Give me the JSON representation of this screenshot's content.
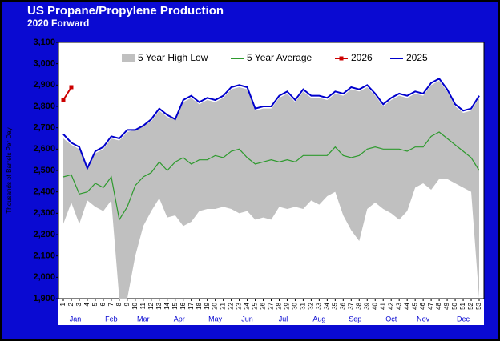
{
  "chart_data": {
    "type": "line",
    "title": "US Propane/Propylene Production",
    "subtitle": "2020 Forward",
    "y_label": "Thousands of Barrels Per Day",
    "categories": [
      "1",
      "2",
      "3",
      "4",
      "5",
      "6",
      "7",
      "8",
      "9",
      "10",
      "11",
      "12",
      "13",
      "14",
      "15",
      "16",
      "17",
      "18",
      "19",
      "20",
      "21",
      "22",
      "23",
      "24",
      "25",
      "26",
      "27",
      "28",
      "29",
      "30",
      "31",
      "32",
      "33",
      "34",
      "35",
      "36",
      "37",
      "38",
      "39",
      "40",
      "41",
      "42",
      "43",
      "44",
      "45",
      "46",
      "47",
      "48",
      "49",
      "50",
      "51",
      "52",
      "53"
    ],
    "months": [
      "Jan",
      "Feb",
      "Mar",
      "Apr",
      "May",
      "Jun",
      "Jul",
      "Aug",
      "Sep",
      "Oct",
      "Nov",
      "Dec"
    ],
    "ylim": [
      1900,
      3100
    ],
    "yticks": [
      {
        "value": 1900,
        "label": "1,900"
      },
      {
        "value": 2000,
        "label": "2,000"
      },
      {
        "value": 2100,
        "label": "2,100"
      },
      {
        "value": 2200,
        "label": "2,200"
      },
      {
        "value": 2300,
        "label": "2,300"
      },
      {
        "value": 2400,
        "label": "2,400"
      },
      {
        "value": 2500,
        "label": "2,500"
      },
      {
        "value": 2600,
        "label": "2,600"
      },
      {
        "value": 2700,
        "label": "2,700"
      },
      {
        "value": 2800,
        "label": "2,800"
      },
      {
        "value": 2900,
        "label": "2,900"
      },
      {
        "value": 3000,
        "label": "3,000"
      },
      {
        "value": 3100,
        "label": "3,100"
      }
    ],
    "grid": false,
    "legend": "top",
    "band": {
      "name": "5 Year High Low",
      "color": "#c0c0c0",
      "high": [
        2650,
        2620,
        2600,
        2510,
        2580,
        2600,
        2650,
        2640,
        2680,
        2690,
        2710,
        2730,
        2780,
        2750,
        2740,
        2820,
        2840,
        2810,
        2830,
        2820,
        2840,
        2880,
        2890,
        2880,
        2780,
        2790,
        2790,
        2840,
        2860,
        2820,
        2870,
        2840,
        2840,
        2830,
        2860,
        2850,
        2880,
        2870,
        2890,
        2850,
        2800,
        2830,
        2850,
        2840,
        2860,
        2850,
        2900,
        2920,
        2870,
        2800,
        2770,
        2780,
        2840
      ],
      "low": [
        2250,
        2350,
        2250,
        2360,
        2330,
        2310,
        2360,
        1900,
        1900,
        2100,
        2240,
        2310,
        2370,
        2280,
        2290,
        2240,
        2260,
        2310,
        2320,
        2320,
        2330,
        2320,
        2300,
        2310,
        2270,
        2280,
        2270,
        2330,
        2320,
        2330,
        2320,
        2360,
        2340,
        2380,
        2400,
        2290,
        2220,
        2170,
        2320,
        2350,
        2320,
        2300,
        2270,
        2310,
        2420,
        2440,
        2410,
        2460,
        2460,
        2440,
        2420,
        2400,
        1900
      ]
    },
    "series": [
      {
        "name": "5 Year Average",
        "color": "#2e9a2e",
        "markers": false,
        "values": [
          2470,
          2480,
          2390,
          2400,
          2440,
          2420,
          2470,
          2270,
          2330,
          2430,
          2470,
          2490,
          2540,
          2500,
          2540,
          2560,
          2530,
          2550,
          2550,
          2570,
          2560,
          2590,
          2600,
          2560,
          2530,
          2540,
          2550,
          2540,
          2550,
          2540,
          2570,
          2570,
          2570,
          2570,
          2610,
          2570,
          2560,
          2570,
          2600,
          2610,
          2600,
          2600,
          2600,
          2590,
          2610,
          2610,
          2660,
          2680,
          2650,
          2620,
          2590,
          2560,
          2500
        ]
      },
      {
        "name": "2026",
        "color": "#cc0000",
        "markers": true,
        "values": [
          2830,
          2890,
          null,
          null,
          null,
          null,
          null,
          null,
          null,
          null,
          null,
          null,
          null,
          null,
          null,
          null,
          null,
          null,
          null,
          null,
          null,
          null,
          null,
          null,
          null,
          null,
          null,
          null,
          null,
          null,
          null,
          null,
          null,
          null,
          null,
          null,
          null,
          null,
          null,
          null,
          null,
          null,
          null,
          null,
          null,
          null,
          null,
          null,
          null,
          null,
          null,
          null,
          null
        ]
      },
      {
        "name": "2025",
        "color": "#0000cc",
        "markers": false,
        "values": [
          2670,
          2630,
          2610,
          2510,
          2590,
          2610,
          2660,
          2650,
          2690,
          2690,
          2710,
          2740,
          2790,
          2760,
          2740,
          2830,
          2850,
          2820,
          2840,
          2830,
          2850,
          2890,
          2900,
          2890,
          2790,
          2800,
          2800,
          2850,
          2870,
          2830,
          2880,
          2850,
          2850,
          2840,
          2870,
          2860,
          2890,
          2880,
          2900,
          2860,
          2810,
          2840,
          2860,
          2850,
          2870,
          2860,
          2910,
          2930,
          2880,
          2810,
          2780,
          2790,
          2850
        ]
      }
    ]
  }
}
